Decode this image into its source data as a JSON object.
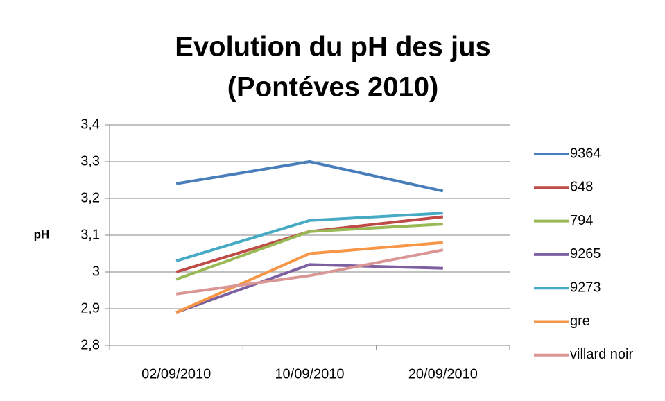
{
  "chart_data": {
    "type": "line",
    "title": [
      "Evolution du pH des jus",
      "(Pontéves 2010)"
    ],
    "y_label": "pH",
    "categories": [
      "02/09/2010",
      "10/09/2010",
      "20/09/2010"
    ],
    "series": [
      {
        "name": "9364",
        "color": "#4a7ebb",
        "values": [
          3.24,
          3.3,
          3.22
        ]
      },
      {
        "name": "648",
        "color": "#be4b48",
        "values": [
          3.0,
          3.11,
          3.15
        ]
      },
      {
        "name": "794",
        "color": "#98b954",
        "values": [
          2.98,
          3.11,
          3.13
        ]
      },
      {
        "name": "9265",
        "color": "#7d60a0",
        "values": [
          2.89,
          3.02,
          3.01
        ]
      },
      {
        "name": "9273",
        "color": "#46aac5",
        "values": [
          3.03,
          3.14,
          3.16
        ]
      },
      {
        "name": "gre",
        "color": "#f79646",
        "values": [
          2.89,
          3.05,
          3.08
        ]
      },
      {
        "name": "villard noir",
        "color": "#d99694",
        "values": [
          2.94,
          2.99,
          3.06
        ]
      }
    ],
    "ylim": [
      2.8,
      3.4
    ],
    "yticks": [
      {
        "value": 2.8,
        "label": "2,8"
      },
      {
        "value": 2.9,
        "label": "2,9"
      },
      3,
      {
        "value": 3.1,
        "label": "3,1"
      },
      {
        "value": 3.2,
        "label": "3,2"
      },
      {
        "value": 3.3,
        "label": "3,3"
      },
      {
        "value": 3.4,
        "label": "3,4"
      }
    ],
    "grid": true,
    "legend": "right"
  }
}
